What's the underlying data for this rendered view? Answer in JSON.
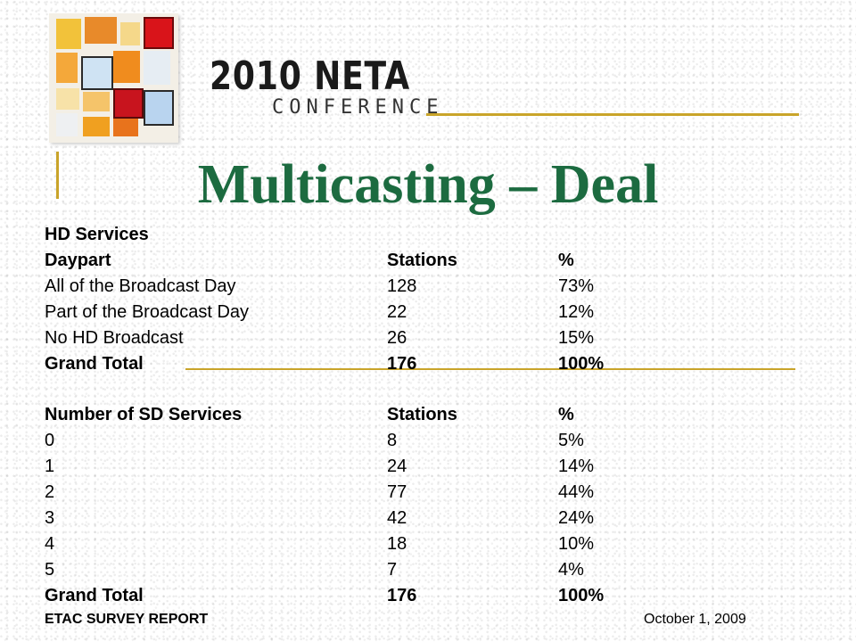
{
  "logo": {
    "line1": "2010 NETA",
    "line2": "CONFERENCE"
  },
  "title": "Multicasting – Deal",
  "hd": {
    "heading": "HD Services",
    "columns": [
      "Daypart",
      "Stations",
      "%"
    ],
    "rows": [
      [
        "All of the Broadcast Day",
        "128",
        "73%"
      ],
      [
        "Part of the Broadcast Day",
        "22",
        "12%"
      ],
      [
        "No HD Broadcast",
        "26",
        "15%"
      ]
    ],
    "total": [
      "Grand Total",
      "176",
      "100%"
    ]
  },
  "sd": {
    "columns": [
      "Number of SD Services",
      "Stations",
      "%"
    ],
    "rows": [
      [
        "0",
        "8",
        "5%"
      ],
      [
        "1",
        "24",
        "14%"
      ],
      [
        "2",
        "77",
        "44%"
      ],
      [
        "3",
        "42",
        "24%"
      ],
      [
        "4",
        "18",
        "10%"
      ],
      [
        "5",
        "7",
        "4%"
      ]
    ],
    "total": [
      "Grand Total",
      "176",
      "100%"
    ]
  },
  "footer": {
    "left": "ETAC SURVEY REPORT",
    "right": "October 1, 2009"
  },
  "colors": {
    "title": "#1c6b40",
    "accent_line": "#c9a42a"
  }
}
